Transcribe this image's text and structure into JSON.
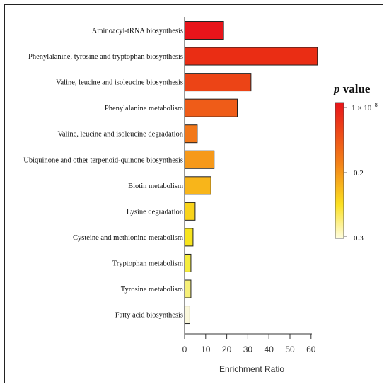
{
  "chart_data": {
    "type": "bar",
    "orientation": "horizontal",
    "categories": [
      "Aminoacyl-tRNA biosynthesis",
      "Phenylalanine, tyrosine and tryptophan biosynthesis",
      "Valine, leucine and isoleucine biosynthesis",
      "Phenylalanine metabolism",
      "Valine, leucine and isoleucine degradation",
      "Ubiquinone and other terpenoid-quinone biosynthesis",
      "Biotin metabolism",
      "Lysine degradation",
      "Cysteine and methionine metabolism",
      "Tryptophan metabolism",
      "Tyrosine metabolism",
      "Fatty acid biosynthesis"
    ],
    "values": [
      18.5,
      63,
      31.5,
      25,
      6,
      14,
      12.5,
      5,
      4,
      3,
      3,
      2.5
    ],
    "colors": [
      "#e8141a",
      "#ea2d14",
      "#ec4416",
      "#ef5c18",
      "#f2781a",
      "#f6991a",
      "#f8b51a",
      "#f9d31a",
      "#f7e41e",
      "#f5ec3c",
      "#f6ef78",
      "#fbf8dc"
    ],
    "xlabel": "Enrichment Ratio",
    "ylabel": "",
    "xlim": [
      0,
      63
    ],
    "xticks": [
      "0",
      "10",
      "20",
      "30",
      "40",
      "50",
      "60"
    ],
    "grid": false,
    "legend": {
      "title_italic": "p",
      "title_rest": " value",
      "tick_labels": [
        "1 × 10",
        "−8",
        "0.2",
        "0.3"
      ],
      "gradient_colors": [
        "#e8141a",
        "#f38218",
        "#fbe021",
        "#fefddf"
      ],
      "placement": "right"
    }
  }
}
